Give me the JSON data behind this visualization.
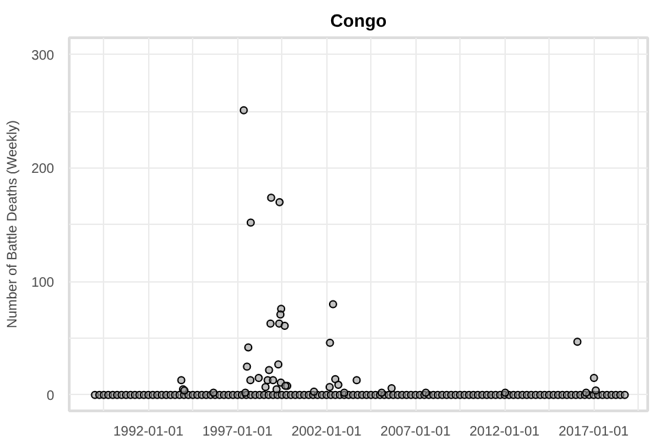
{
  "chart_data": {
    "type": "scatter",
    "title": "Congo",
    "ylabel": "Number of Battle Deaths (Weekly)",
    "xlim": [
      "1987-07-24",
      "2020-01-15"
    ],
    "ylim": [
      -14,
      315
    ],
    "xticks": [
      {
        "value": "1989-07-01",
        "label": null
      },
      "1992-01-01",
      {
        "value": "1994-07-01",
        "label": null
      },
      "1997-01-01",
      {
        "value": "1999-07-01",
        "label": null
      },
      "2002-01-01",
      {
        "value": "2004-07-01",
        "label": null
      },
      "2007-01-01",
      {
        "value": "2009-07-01",
        "label": null
      },
      "2012-01-01",
      {
        "value": "2014-07-01",
        "label": null
      },
      "2017-01-01",
      {
        "value": "2019-07-01",
        "label": null
      }
    ],
    "yticks": [
      0,
      {
        "value": 50,
        "label": null
      },
      100,
      {
        "value": 150,
        "label": null
      },
      200,
      {
        "value": 250,
        "label": null
      },
      300
    ],
    "grid": true,
    "marker": "circle",
    "series": [
      {
        "color": "#000000",
        "x": [
          "1989-01-01",
          "1989-04-01",
          "1989-07-01",
          "1989-10-01",
          "1990-01-01",
          "1990-04-01",
          "1990-07-01",
          "1990-10-01",
          "1991-01-01",
          "1991-04-01",
          "1991-07-01",
          "1991-10-01",
          "1992-01-01",
          "1992-04-01",
          "1992-07-01",
          "1992-10-01",
          "1993-01-01",
          "1993-04-01",
          "1993-07-01",
          "1993-10-01",
          "1994-01-01",
          "1994-04-01",
          "1994-07-01",
          "1994-10-01",
          "1995-01-01",
          "1995-04-01",
          "1995-07-01",
          "1995-10-01",
          "1996-01-01",
          "1996-04-01",
          "1996-07-01",
          "1996-10-01",
          "1997-01-01",
          "1997-04-01",
          "1997-07-01",
          "1997-10-01",
          "1998-01-01",
          "1998-04-01",
          "1998-07-01",
          "1998-10-01",
          "1999-01-01",
          "1999-04-01",
          "1999-07-01",
          "1999-10-01",
          "2000-01-01",
          "2000-04-01",
          "2000-07-01",
          "2000-10-01",
          "2001-01-01",
          "2001-04-01",
          "2001-07-01",
          "2001-10-01",
          "2002-01-01",
          "2002-04-01",
          "2002-07-01",
          "2002-10-01",
          "2003-01-01",
          "2003-04-01",
          "2003-07-01",
          "2003-10-01",
          "2004-01-01",
          "2004-04-01",
          "2004-07-01",
          "2004-10-01",
          "2005-01-01",
          "2005-04-01",
          "2005-07-01",
          "2005-10-01",
          "2006-01-01",
          "2006-04-01",
          "2006-07-01",
          "2006-10-01",
          "2007-01-01",
          "2007-04-01",
          "2007-07-01",
          "2007-10-01",
          "2008-01-01",
          "2008-04-01",
          "2008-07-01",
          "2008-10-01",
          "2009-01-01",
          "2009-04-01",
          "2009-07-01",
          "2009-10-01",
          "2010-01-01",
          "2010-04-01",
          "2010-07-01",
          "2010-10-01",
          "2011-01-01",
          "2011-04-01",
          "2011-07-01",
          "2011-10-01",
          "2012-01-01",
          "2012-04-01",
          "2012-07-01",
          "2012-10-01",
          "2013-01-01",
          "2013-04-01",
          "2013-07-01",
          "2013-10-01",
          "2014-01-01",
          "2014-04-01",
          "2014-07-01",
          "2014-10-01",
          "2015-01-01",
          "2015-04-01",
          "2015-07-01",
          "2015-10-01",
          "2016-01-01",
          "2016-04-01",
          "2016-07-01",
          "2016-10-01",
          "2017-01-01",
          "2017-04-01",
          "2017-07-01",
          "2017-10-01",
          "2018-01-01",
          "2018-04-01",
          "2018-07-01",
          "2018-10-01",
          "1997-05-11",
          "1997-10-01",
          "1998-11-24",
          "1999-05-15",
          "1999-06-17",
          "1999-06-02",
          "1998-11-10",
          "1999-05-08",
          "1999-08-29",
          "1997-08-12",
          "1997-07-16",
          "1997-09-24",
          "1998-03-14",
          "1998-10-12",
          "1999-04-20",
          "1999-06-10",
          "1998-09-13",
          "1999-01-01",
          "1999-10-20",
          "1999-09-12",
          "1998-07-31",
          "1999-03-15",
          "1993-11-07",
          "1993-12-13",
          "1994-01-10",
          "2001-04-20",
          "2002-03-14",
          "2002-05-16",
          "2002-03-07",
          "2002-07-01",
          "2002-09-02",
          "2003-09-13",
          "2003-01-01",
          "2005-08-29",
          "2005-02-06",
          "1995-08-29",
          "1997-06-13",
          "2007-07-31",
          "2012-01-15",
          "2016-02-03",
          "2017-01-08",
          "2017-02-14",
          "2016-07-31"
        ],
        "values": [
          0,
          0,
          0,
          0,
          0,
          0,
          0,
          0,
          0,
          0,
          0,
          0,
          0,
          0,
          0,
          0,
          0,
          0,
          0,
          0,
          0,
          0,
          0,
          0,
          0,
          0,
          0,
          0,
          0,
          0,
          0,
          0,
          0,
          0,
          0,
          0,
          0,
          0,
          0,
          0,
          0,
          0,
          0,
          0,
          0,
          0,
          0,
          0,
          0,
          0,
          0,
          0,
          0,
          0,
          0,
          0,
          0,
          0,
          0,
          0,
          0,
          0,
          0,
          0,
          0,
          0,
          0,
          0,
          0,
          0,
          0,
          0,
          0,
          0,
          0,
          0,
          0,
          0,
          0,
          0,
          0,
          0,
          0,
          0,
          0,
          0,
          0,
          0,
          0,
          0,
          0,
          0,
          0,
          0,
          0,
          0,
          0,
          0,
          0,
          0,
          0,
          0,
          0,
          0,
          0,
          0,
          0,
          0,
          0,
          0,
          0,
          0,
          0,
          0,
          0,
          0,
          0,
          0,
          0,
          0,
          251,
          152,
          174,
          170,
          76,
          71,
          63,
          63,
          61,
          42,
          25,
          13,
          15,
          22,
          27,
          11,
          13,
          13,
          8,
          8,
          7,
          5,
          13,
          5,
          4,
          3,
          46,
          80,
          7,
          14,
          9,
          13,
          2,
          6,
          2,
          2,
          2,
          2,
          2,
          47,
          15,
          4,
          2
        ]
      }
    ]
  }
}
